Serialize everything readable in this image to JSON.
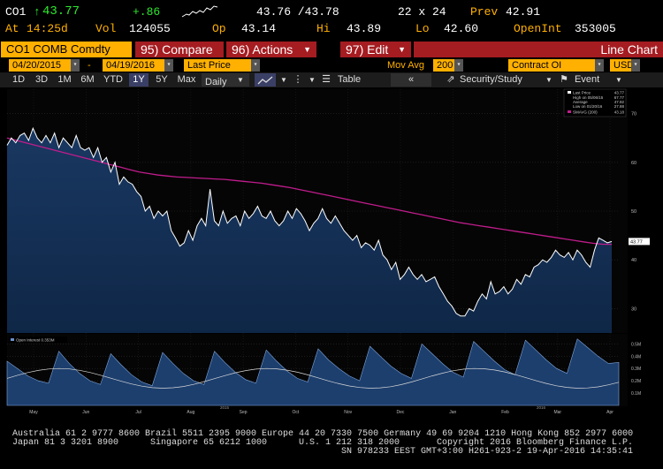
{
  "quote": {
    "ticker": "CO1",
    "last": "43.77",
    "change": "+.86",
    "bid_ask": "43.76 /43.78",
    "size": "22 x 24",
    "prev_label": "Prev",
    "prev": "42.91",
    "time_label": "At",
    "time": "14:25d",
    "vol_label": "Vol",
    "vol": "124055",
    "open_label": "Op",
    "open": "43.14",
    "hi_label": "Hi",
    "hi": "43.89",
    "lo_label": "Lo",
    "lo": "42.60",
    "oi_label": "OpenInt",
    "oi": "353005"
  },
  "function_bar": {
    "security": "CO1 COMB Comdty",
    "compare": "95) Compare",
    "actions": "96) Actions",
    "edit": "97) Edit",
    "view_title": "Line Chart"
  },
  "options": {
    "start_date": "04/20/2015",
    "end_date": "04/19/2016",
    "field": "Last Price",
    "mov_avg_label": "Mov Avg",
    "mov_avg": "200",
    "lower_field": "Contract OI",
    "currency": "USD"
  },
  "toolbar": {
    "periods": [
      "1D",
      "3D",
      "1M",
      "6M",
      "YTD",
      "1Y",
      "5Y",
      "Max"
    ],
    "selected_period": "1Y",
    "frequency": "Daily",
    "table_label": "Table",
    "security_study": "Security/Study",
    "event": "Event"
  },
  "legend": {
    "last_price": "Last Price",
    "last_price_val": "43.77",
    "high": "High on 05/06/15",
    "high_val": "67.77",
    "average": "Average",
    "average_val": "47.92",
    "low": "Low on 01/20/16",
    "low_val": "27.88",
    "smavg": "SMAVG (200)",
    "smavg_val": "43.18",
    "oi_legend": "Open Interest 0.353M"
  },
  "chart_data": {
    "type": "line",
    "price_axis": [
      30,
      40,
      50,
      60,
      70
    ],
    "oi_axis": [
      "0.1M",
      "0.2M",
      "0.3M",
      "0.4M",
      "0.5M"
    ],
    "x_labels": [
      "May",
      "Jun",
      "Jul",
      "Aug",
      "Sep",
      "Oct",
      "Nov",
      "Dec",
      "Jan",
      "Feb",
      "Mar",
      "Apr"
    ],
    "year_labels": [
      "2015",
      "2016"
    ],
    "price": [
      63.5,
      65,
      64,
      65.5,
      66,
      64.5,
      67,
      65,
      64,
      65.5,
      64,
      66,
      63,
      65,
      64,
      63,
      65.5,
      63,
      62.5,
      63,
      61,
      63,
      60,
      61,
      58,
      60,
      55.5,
      57,
      56,
      55.5,
      54,
      53,
      50,
      51,
      48.5,
      50,
      49,
      50,
      46,
      44.5,
      42.8,
      43.5,
      46,
      44,
      47,
      48.5,
      47,
      54.5,
      48,
      47,
      50,
      47.5,
      48.5,
      49,
      47,
      50,
      48.5,
      49.5,
      51,
      49,
      48.5,
      50,
      48,
      47,
      48,
      50,
      48.5,
      50.5,
      49.5,
      48,
      46,
      47.5,
      48.5,
      50.5,
      48.5,
      47.5,
      49,
      47.5,
      46,
      45,
      44,
      45,
      42.5,
      43.5,
      43,
      42,
      44,
      41,
      40,
      38,
      39.5,
      36,
      37,
      38.5,
      37,
      36,
      37,
      35.5,
      36,
      36.5,
      34.5,
      33,
      31.5,
      30.5,
      29,
      28.5,
      28.5,
      30,
      29.5,
      31.5,
      33,
      32,
      35.5,
      33,
      33.5,
      34.5,
      33,
      34,
      36,
      35,
      37,
      36.5,
      38.5,
      39,
      40,
      39.5,
      40.5,
      42,
      41,
      40.5,
      41.5,
      40,
      42,
      41,
      39.5,
      38.5,
      42,
      44.5,
      44,
      43.5,
      43.77
    ],
    "smavg": [
      65,
      64.5,
      64,
      63.5,
      63,
      62.5,
      62,
      61.5,
      61,
      60.5,
      60,
      59.5,
      59,
      58.5,
      58,
      57.7,
      57.4,
      57.2,
      57,
      56.9,
      56.8,
      56.7,
      56.6,
      56.5,
      56.3,
      56.1,
      55.9,
      55.7,
      55.4,
      55.1,
      54.8,
      54.4,
      54,
      53.6,
      53.2,
      52.8,
      52.4,
      52,
      51.6,
      51.2,
      50.8,
      50.4,
      50,
      49.6,
      49.2,
      48.8,
      48.4,
      48,
      47.6,
      47.3,
      47,
      46.7,
      46.4,
      46.1,
      45.8,
      45.5,
      45.2,
      44.9,
      44.6,
      44.3,
      44,
      43.7,
      43.4,
      43.2,
      43.18
    ],
    "open_interest": [
      0.36,
      0.3,
      0.24,
      0.2,
      0.18,
      0.44,
      0.34,
      0.26,
      0.2,
      0.17,
      0.42,
      0.33,
      0.25,
      0.19,
      0.16,
      0.43,
      0.34,
      0.26,
      0.2,
      0.17,
      0.44,
      0.35,
      0.27,
      0.21,
      0.18,
      0.45,
      0.36,
      0.28,
      0.22,
      0.19,
      0.46,
      0.37,
      0.3,
      0.24,
      0.2,
      0.48,
      0.4,
      0.32,
      0.26,
      0.22,
      0.5,
      0.42,
      0.34,
      0.27,
      0.23,
      0.52,
      0.44,
      0.36,
      0.29,
      0.25,
      0.53,
      0.45,
      0.37,
      0.3,
      0.26,
      0.54,
      0.47,
      0.4,
      0.34,
      0.35
    ]
  },
  "footer": {
    "line1": "Australia 61 2 9777 8600 Brazil 5511 2395 9000 Europe 44 20 7330 7500 Germany 49 69 9204 1210 Hong Kong 852 2977 6000",
    "line2a": "Japan 81 3 3201 8900",
    "line2b": "Singapore 65 6212 1000",
    "line2c": "U.S. 1 212 318 2000",
    "line2d": "Copyright 2016 Bloomberg Finance L.P.",
    "line3": "SN 978233 EEST GMT+3:00 H261-923-2 19-Apr-2016 14:35:41"
  },
  "colors": {
    "amber": "#ffb000",
    "green": "#2ee82e",
    "red_button": "#a51c21",
    "price_line": "#ffffff",
    "smavg_line": "#c01c8c",
    "area_fill": "#0f2747"
  }
}
